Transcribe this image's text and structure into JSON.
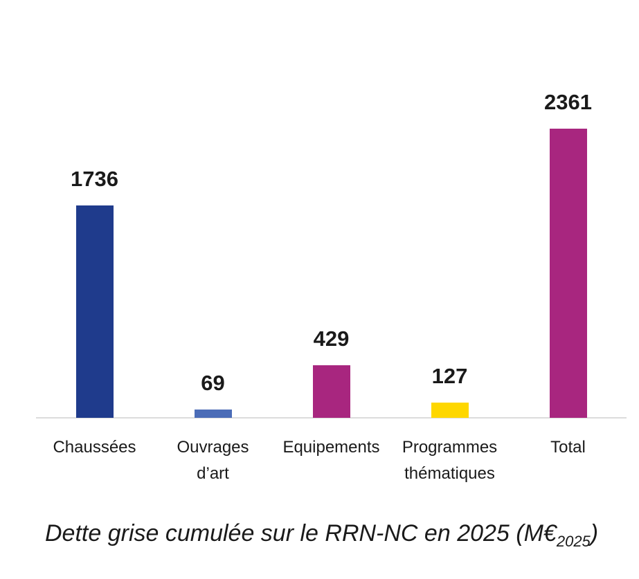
{
  "chart_data": {
    "type": "bar",
    "categories": [
      "Chaussées",
      "Ouvrages d’art",
      "Equipements",
      "Programmes thématiques",
      "Total"
    ],
    "values": [
      1736,
      69,
      429,
      127,
      2361
    ],
    "colors": [
      "#1f3b8c",
      "#4b6cb7",
      "#a8267f",
      "#fed700",
      "#a8267f"
    ],
    "title": "Dette grise cumulée sur le RRN-NC en 2025 (M€",
    "title_subscript": "2025",
    "title_end": ")"
  }
}
